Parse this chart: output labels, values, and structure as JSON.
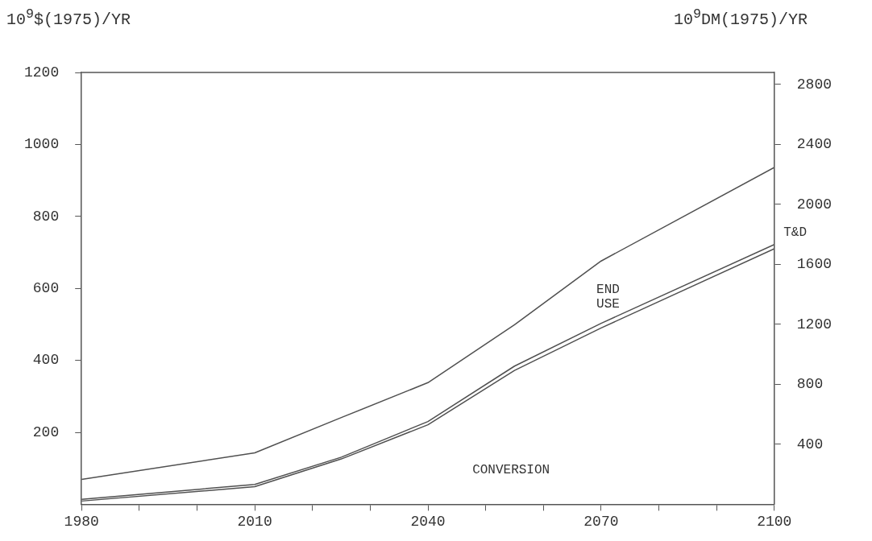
{
  "chart_data": {
    "type": "line",
    "ylabel": "10$^{9}$$(1975)/YR",
    "y2label": "10$^{9}$DM(1975)/YR",
    "x": [
      1980,
      2010,
      2025,
      2040,
      2055,
      2070,
      2100
    ],
    "series": [
      {
        "color": "#505050",
        "values": [
          69,
          143,
          241,
          338,
          499,
          676,
          936
        ]
      },
      {
        "color": "#505050",
        "values": [
          14,
          55,
          131,
          230,
          384,
          503,
          722
        ]
      },
      {
        "color": "#505050",
        "values": [
          9,
          49,
          126,
          221,
          372,
          490,
          710
        ]
      }
    ],
    "xlim": [
      1980,
      2100
    ],
    "xticks": [
      1980,
      {
        "value": 1990,
        "label": null
      },
      {
        "value": 2000,
        "label": null
      },
      2010,
      {
        "value": 2020,
        "label": null
      },
      {
        "value": 2030,
        "label": null
      },
      2040,
      {
        "value": 2050,
        "label": null
      },
      {
        "value": 2060,
        "label": null
      },
      2070,
      {
        "value": 2080,
        "label": null
      },
      {
        "value": 2090,
        "label": null
      },
      2100
    ],
    "ylim": [
      0,
      1200
    ],
    "yticks": [
      200,
      400,
      600,
      800,
      1000,
      1200
    ],
    "y2lim": [
      0,
      2880
    ],
    "y2ticks": [
      400,
      800,
      1200,
      1600,
      2000,
      2400,
      2800
    ],
    "annotations": [
      "END USE",
      "T&D",
      "CONVERSION"
    ],
    "grid": false,
    "legend": false,
    "marker": "none",
    "line_style": "solid"
  }
}
